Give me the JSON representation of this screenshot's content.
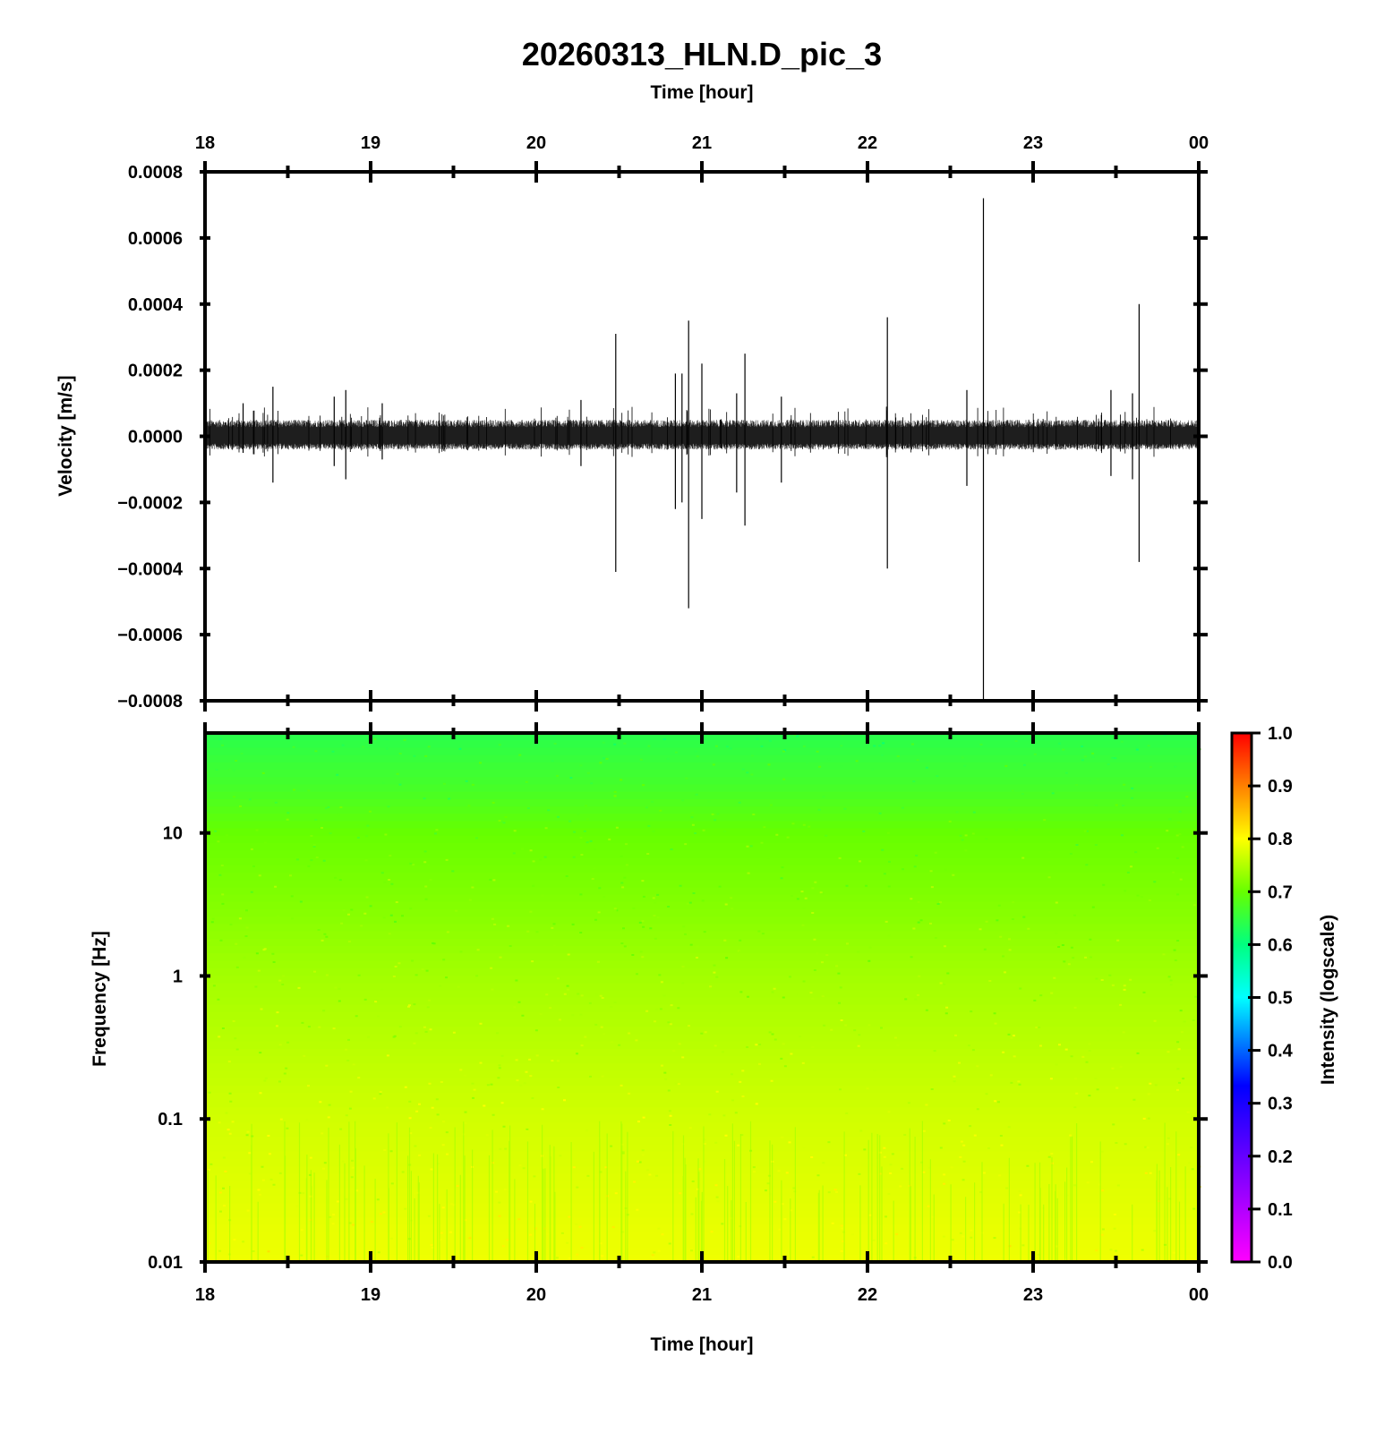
{
  "chart_data": [
    {
      "type": "line",
      "title": "20260313_HLN.D_pic_3",
      "top_axis_label": "Time [hour]",
      "ylabel": "Velocity [m/s]",
      "x_ticks": [
        "18",
        "19",
        "20",
        "21",
        "22",
        "23",
        "00"
      ],
      "xlim": [
        18,
        24
      ],
      "ylim": [
        -0.0008,
        0.0008
      ],
      "y_ticks": [
        "0.0008",
        "0.0006",
        "0.0004",
        "0.0002",
        "0.0000",
        "−0.0002",
        "−0.0004",
        "−0.0006",
        "−0.0008"
      ],
      "y_tick_values": [
        0.0008,
        0.0006,
        0.0004,
        0.0002,
        0.0,
        -0.0002,
        -0.0004,
        -0.0006,
        -0.0008
      ],
      "noise_band": [
        -4e-05,
        5e-05
      ],
      "series": [
        {
          "spikes": [
            {
              "x": 18.23,
              "up": 0.0001,
              "down": -5e-05
            },
            {
              "x": 18.41,
              "up": 0.00015,
              "down": -0.00014
            },
            {
              "x": 18.78,
              "up": 0.00012,
              "down": -9e-05
            },
            {
              "x": 18.85,
              "up": 0.00014,
              "down": -0.00013
            },
            {
              "x": 19.07,
              "up": 0.0001,
              "down": -7e-05
            },
            {
              "x": 20.27,
              "up": 0.00011,
              "down": -9e-05
            },
            {
              "x": 20.48,
              "up": 0.00031,
              "down": -0.00041
            },
            {
              "x": 20.84,
              "up": 0.00019,
              "down": -0.00022
            },
            {
              "x": 20.88,
              "up": 0.00019,
              "down": -0.0002
            },
            {
              "x": 20.92,
              "up": 0.00035,
              "down": -0.00052
            },
            {
              "x": 21.0,
              "up": 0.00022,
              "down": -0.00025
            },
            {
              "x": 21.21,
              "up": 0.00013,
              "down": -0.00017
            },
            {
              "x": 21.26,
              "up": 0.00025,
              "down": -0.00027
            },
            {
              "x": 21.48,
              "up": 0.00012,
              "down": -0.00014
            },
            {
              "x": 22.12,
              "up": 0.00036,
              "down": -0.0004
            },
            {
              "x": 22.6,
              "up": 0.00014,
              "down": -0.00015
            },
            {
              "x": 22.7,
              "up": 0.00072,
              "down": -0.0008
            },
            {
              "x": 23.47,
              "up": 0.00014,
              "down": -0.00012
            },
            {
              "x": 23.6,
              "up": 0.00013,
              "down": -0.00013
            },
            {
              "x": 23.64,
              "up": 0.0004,
              "down": -0.00038
            }
          ]
        }
      ]
    },
    {
      "type": "heatmap",
      "xlabel": "Time [hour]",
      "ylabel": "Frequency [Hz]",
      "x_ticks": [
        "18",
        "19",
        "20",
        "21",
        "22",
        "23",
        "00"
      ],
      "xlim": [
        18,
        24
      ],
      "y_scale": "log",
      "ylim": [
        0.01,
        50
      ],
      "y_ticks": [
        "10",
        "1",
        "0.1",
        "0.01"
      ],
      "y_tick_values": [
        10,
        1,
        0.1,
        0.01
      ],
      "colorbar": {
        "label": "Intensity (logscale)",
        "range": [
          0.0,
          1.0
        ],
        "ticks": [
          "1.0",
          "0.9",
          "0.8",
          "0.7",
          "0.6",
          "0.5",
          "0.4",
          "0.3",
          "0.2",
          "0.1",
          "0.0"
        ],
        "tick_values": [
          1.0,
          0.9,
          0.8,
          0.7,
          0.6,
          0.5,
          0.4,
          0.3,
          0.2,
          0.1,
          0.0
        ]
      },
      "intensity_profile": [
        {
          "freq": 50,
          "intensity": 0.64
        },
        {
          "freq": 20,
          "intensity": 0.67
        },
        {
          "freq": 10,
          "intensity": 0.7
        },
        {
          "freq": 3,
          "intensity": 0.72
        },
        {
          "freq": 1,
          "intensity": 0.74
        },
        {
          "freq": 0.1,
          "intensity": 0.77
        },
        {
          "freq": 0.01,
          "intensity": 0.79
        }
      ]
    }
  ]
}
